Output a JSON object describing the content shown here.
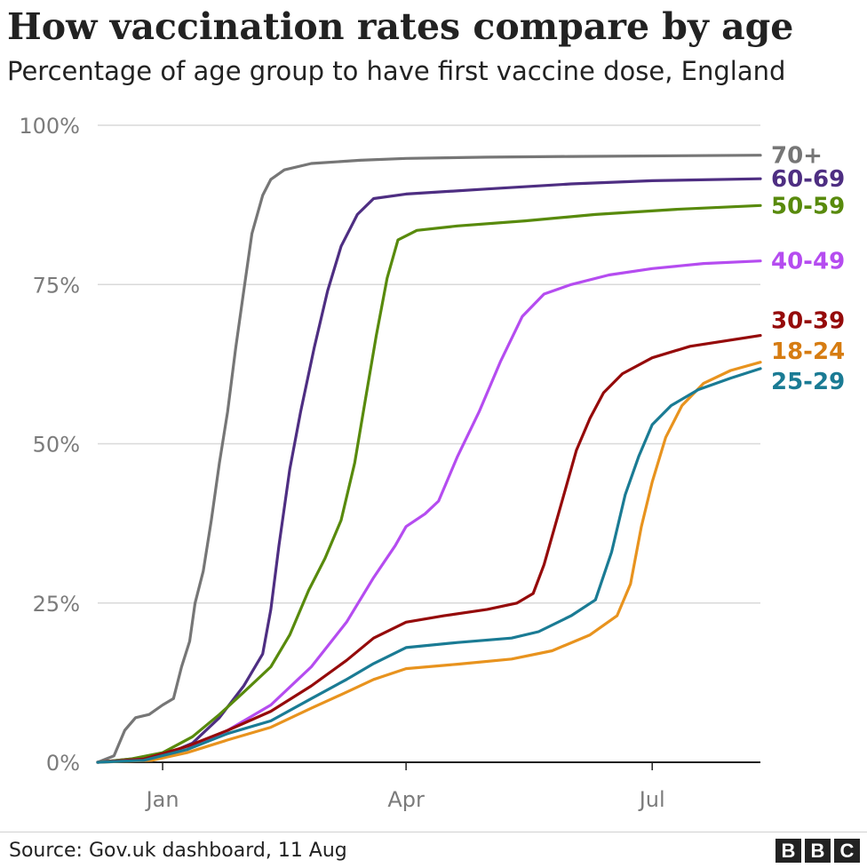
{
  "header": {
    "title": "How vaccination rates compare by age",
    "subtitle": "Percentage of age group to have first vaccine dose, England"
  },
  "footer": {
    "source": "Source: Gov.uk dashboard, 11 Aug",
    "logo_letters": [
      "B",
      "B",
      "C"
    ]
  },
  "chart_data": {
    "type": "line",
    "title": "How vaccination rates compare by age",
    "subtitle": "Percentage of age group to have first vaccine dose, England",
    "x_axis": {
      "unit": "date",
      "range": [
        "2020-12-08",
        "2021-08-10"
      ],
      "ticks": [
        {
          "date": "2021-01-01",
          "label": "Jan"
        },
        {
          "date": "2021-04-01",
          "label": "Apr"
        },
        {
          "date": "2021-07-01",
          "label": "Jul"
        }
      ]
    },
    "y_axis": {
      "range": [
        0,
        100
      ],
      "ticks": [
        {
          "value": 0,
          "label": "0%"
        },
        {
          "value": 25,
          "label": "25%"
        },
        {
          "value": 50,
          "label": "50%"
        },
        {
          "value": 75,
          "label": "75%"
        },
        {
          "value": 100,
          "label": "100%"
        }
      ]
    },
    "grid": true,
    "series": [
      {
        "name": "70+",
        "color": "#767676",
        "points": [
          [
            "2020-12-08",
            0
          ],
          [
            "2020-12-14",
            1
          ],
          [
            "2020-12-18",
            5
          ],
          [
            "2020-12-22",
            7
          ],
          [
            "2020-12-27",
            7.5
          ],
          [
            "2021-01-01",
            9
          ],
          [
            "2021-01-05",
            10
          ],
          [
            "2021-01-08",
            15
          ],
          [
            "2021-01-11",
            19
          ],
          [
            "2021-01-13",
            25
          ],
          [
            "2021-01-16",
            30
          ],
          [
            "2021-01-19",
            38
          ],
          [
            "2021-01-22",
            47
          ],
          [
            "2021-01-25",
            55
          ],
          [
            "2021-01-28",
            65
          ],
          [
            "2021-01-31",
            74
          ],
          [
            "2021-02-03",
            83
          ],
          [
            "2021-02-07",
            89
          ],
          [
            "2021-02-10",
            91.5
          ],
          [
            "2021-02-15",
            93
          ],
          [
            "2021-02-25",
            94
          ],
          [
            "2021-03-15",
            94.5
          ],
          [
            "2021-04-01",
            94.8
          ],
          [
            "2021-05-01",
            95
          ],
          [
            "2021-06-01",
            95.1
          ],
          [
            "2021-08-10",
            95.3
          ]
        ]
      },
      {
        "name": "60-69",
        "color": "#4e2e82",
        "points": [
          [
            "2020-12-08",
            0
          ],
          [
            "2020-12-20",
            0.5
          ],
          [
            "2021-01-01",
            1
          ],
          [
            "2021-01-12",
            3
          ],
          [
            "2021-01-22",
            7
          ],
          [
            "2021-01-31",
            12
          ],
          [
            "2021-02-07",
            17
          ],
          [
            "2021-02-10",
            24
          ],
          [
            "2021-02-13",
            34
          ],
          [
            "2021-02-17",
            46
          ],
          [
            "2021-02-21",
            55
          ],
          [
            "2021-02-26",
            65
          ],
          [
            "2021-03-03",
            74
          ],
          [
            "2021-03-08",
            81
          ],
          [
            "2021-03-14",
            86
          ],
          [
            "2021-03-20",
            88.5
          ],
          [
            "2021-04-01",
            89.2
          ],
          [
            "2021-05-01",
            90
          ],
          [
            "2021-06-01",
            90.8
          ],
          [
            "2021-07-01",
            91.3
          ],
          [
            "2021-08-10",
            91.6
          ]
        ]
      },
      {
        "name": "50-59",
        "color": "#588a0c",
        "points": [
          [
            "2020-12-08",
            0
          ],
          [
            "2020-12-20",
            0.5
          ],
          [
            "2021-01-01",
            1.5
          ],
          [
            "2021-01-12",
            4
          ],
          [
            "2021-01-22",
            7.5
          ],
          [
            "2021-01-31",
            11
          ],
          [
            "2021-02-10",
            15
          ],
          [
            "2021-02-17",
            20
          ],
          [
            "2021-02-24",
            27
          ],
          [
            "2021-03-02",
            32
          ],
          [
            "2021-03-08",
            38
          ],
          [
            "2021-03-13",
            47
          ],
          [
            "2021-03-17",
            57
          ],
          [
            "2021-03-21",
            67
          ],
          [
            "2021-03-25",
            76
          ],
          [
            "2021-03-29",
            82
          ],
          [
            "2021-04-05",
            83.5
          ],
          [
            "2021-04-20",
            84.2
          ],
          [
            "2021-05-15",
            85
          ],
          [
            "2021-06-10",
            86
          ],
          [
            "2021-07-10",
            86.8
          ],
          [
            "2021-08-10",
            87.4
          ]
        ]
      },
      {
        "name": "40-49",
        "color": "#b54cf0",
        "points": [
          [
            "2020-12-08",
            0
          ],
          [
            "2020-12-25",
            0.5
          ],
          [
            "2021-01-10",
            2
          ],
          [
            "2021-01-25",
            5
          ],
          [
            "2021-02-10",
            9
          ],
          [
            "2021-02-25",
            15
          ],
          [
            "2021-03-10",
            22
          ],
          [
            "2021-03-20",
            29
          ],
          [
            "2021-03-28",
            34
          ],
          [
            "2021-04-01",
            37
          ],
          [
            "2021-04-08",
            39
          ],
          [
            "2021-04-13",
            41
          ],
          [
            "2021-04-20",
            48
          ],
          [
            "2021-04-28",
            55
          ],
          [
            "2021-05-06",
            63
          ],
          [
            "2021-05-14",
            70
          ],
          [
            "2021-05-22",
            73.5
          ],
          [
            "2021-06-01",
            75
          ],
          [
            "2021-06-15",
            76.5
          ],
          [
            "2021-07-01",
            77.5
          ],
          [
            "2021-07-20",
            78.3
          ],
          [
            "2021-08-10",
            78.7
          ]
        ]
      },
      {
        "name": "30-39",
        "color": "#950a0a",
        "points": [
          [
            "2020-12-08",
            0
          ],
          [
            "2020-12-25",
            0.5
          ],
          [
            "2021-01-10",
            2.5
          ],
          [
            "2021-01-25",
            5
          ],
          [
            "2021-02-10",
            8
          ],
          [
            "2021-02-25",
            12
          ],
          [
            "2021-03-10",
            16
          ],
          [
            "2021-03-20",
            19.5
          ],
          [
            "2021-04-01",
            22
          ],
          [
            "2021-04-15",
            23
          ],
          [
            "2021-05-01",
            24
          ],
          [
            "2021-05-12",
            25
          ],
          [
            "2021-05-18",
            26.5
          ],
          [
            "2021-05-22",
            31
          ],
          [
            "2021-05-26",
            37
          ],
          [
            "2021-05-30",
            43
          ],
          [
            "2021-06-03",
            49
          ],
          [
            "2021-06-08",
            54
          ],
          [
            "2021-06-13",
            58
          ],
          [
            "2021-06-20",
            61
          ],
          [
            "2021-07-01",
            63.5
          ],
          [
            "2021-07-15",
            65.3
          ],
          [
            "2021-08-10",
            67
          ]
        ]
      },
      {
        "name": "18-24",
        "color": "#e8931e",
        "points": [
          [
            "2020-12-08",
            0
          ],
          [
            "2020-12-28",
            0.3
          ],
          [
            "2021-01-10",
            1.5
          ],
          [
            "2021-01-25",
            3.5
          ],
          [
            "2021-02-10",
            5.5
          ],
          [
            "2021-02-25",
            8.5
          ],
          [
            "2021-03-10",
            11
          ],
          [
            "2021-03-20",
            13
          ],
          [
            "2021-04-01",
            14.7
          ],
          [
            "2021-04-20",
            15.4
          ],
          [
            "2021-05-10",
            16.2
          ],
          [
            "2021-05-25",
            17.5
          ],
          [
            "2021-06-08",
            20
          ],
          [
            "2021-06-18",
            23
          ],
          [
            "2021-06-23",
            28
          ],
          [
            "2021-06-27",
            37
          ],
          [
            "2021-07-01",
            44
          ],
          [
            "2021-07-06",
            51
          ],
          [
            "2021-07-12",
            56
          ],
          [
            "2021-07-20",
            59.5
          ],
          [
            "2021-07-30",
            61.5
          ],
          [
            "2021-08-10",
            62.8
          ]
        ]
      },
      {
        "name": "25-29",
        "color": "#1a7b94",
        "points": [
          [
            "2020-12-08",
            0
          ],
          [
            "2020-12-25",
            0.3
          ],
          [
            "2021-01-10",
            2
          ],
          [
            "2021-01-25",
            4.5
          ],
          [
            "2021-02-10",
            6.5
          ],
          [
            "2021-02-25",
            10
          ],
          [
            "2021-03-10",
            13
          ],
          [
            "2021-03-20",
            15.5
          ],
          [
            "2021-04-01",
            18
          ],
          [
            "2021-04-20",
            18.8
          ],
          [
            "2021-05-10",
            19.5
          ],
          [
            "2021-05-20",
            20.5
          ],
          [
            "2021-06-01",
            23
          ],
          [
            "2021-06-10",
            25.5
          ],
          [
            "2021-06-16",
            33
          ],
          [
            "2021-06-21",
            42
          ],
          [
            "2021-06-26",
            48
          ],
          [
            "2021-07-01",
            53
          ],
          [
            "2021-07-08",
            56
          ],
          [
            "2021-07-18",
            58.5
          ],
          [
            "2021-07-30",
            60.3
          ],
          [
            "2021-08-10",
            61.8
          ]
        ]
      }
    ],
    "labels": [
      {
        "series": "70+",
        "text": "70+",
        "color": "#767676",
        "at": 95.3
      },
      {
        "series": "60-69",
        "text": "60-69",
        "color": "#4e2e82",
        "at": 91.6
      },
      {
        "series": "50-59",
        "text": "50-59",
        "color": "#588a0c",
        "at": 87.4
      },
      {
        "series": "40-49",
        "text": "40-49",
        "color": "#b54cf0",
        "at": 78.7
      },
      {
        "series": "30-39",
        "text": "30-39",
        "color": "#950a0a",
        "at": 69.4
      },
      {
        "series": "18-24",
        "text": "18-24",
        "color": "#d67c12",
        "at": 64.6
      },
      {
        "series": "25-29",
        "text": "25-29",
        "color": "#1a7b94",
        "at": 59.8
      }
    ]
  }
}
